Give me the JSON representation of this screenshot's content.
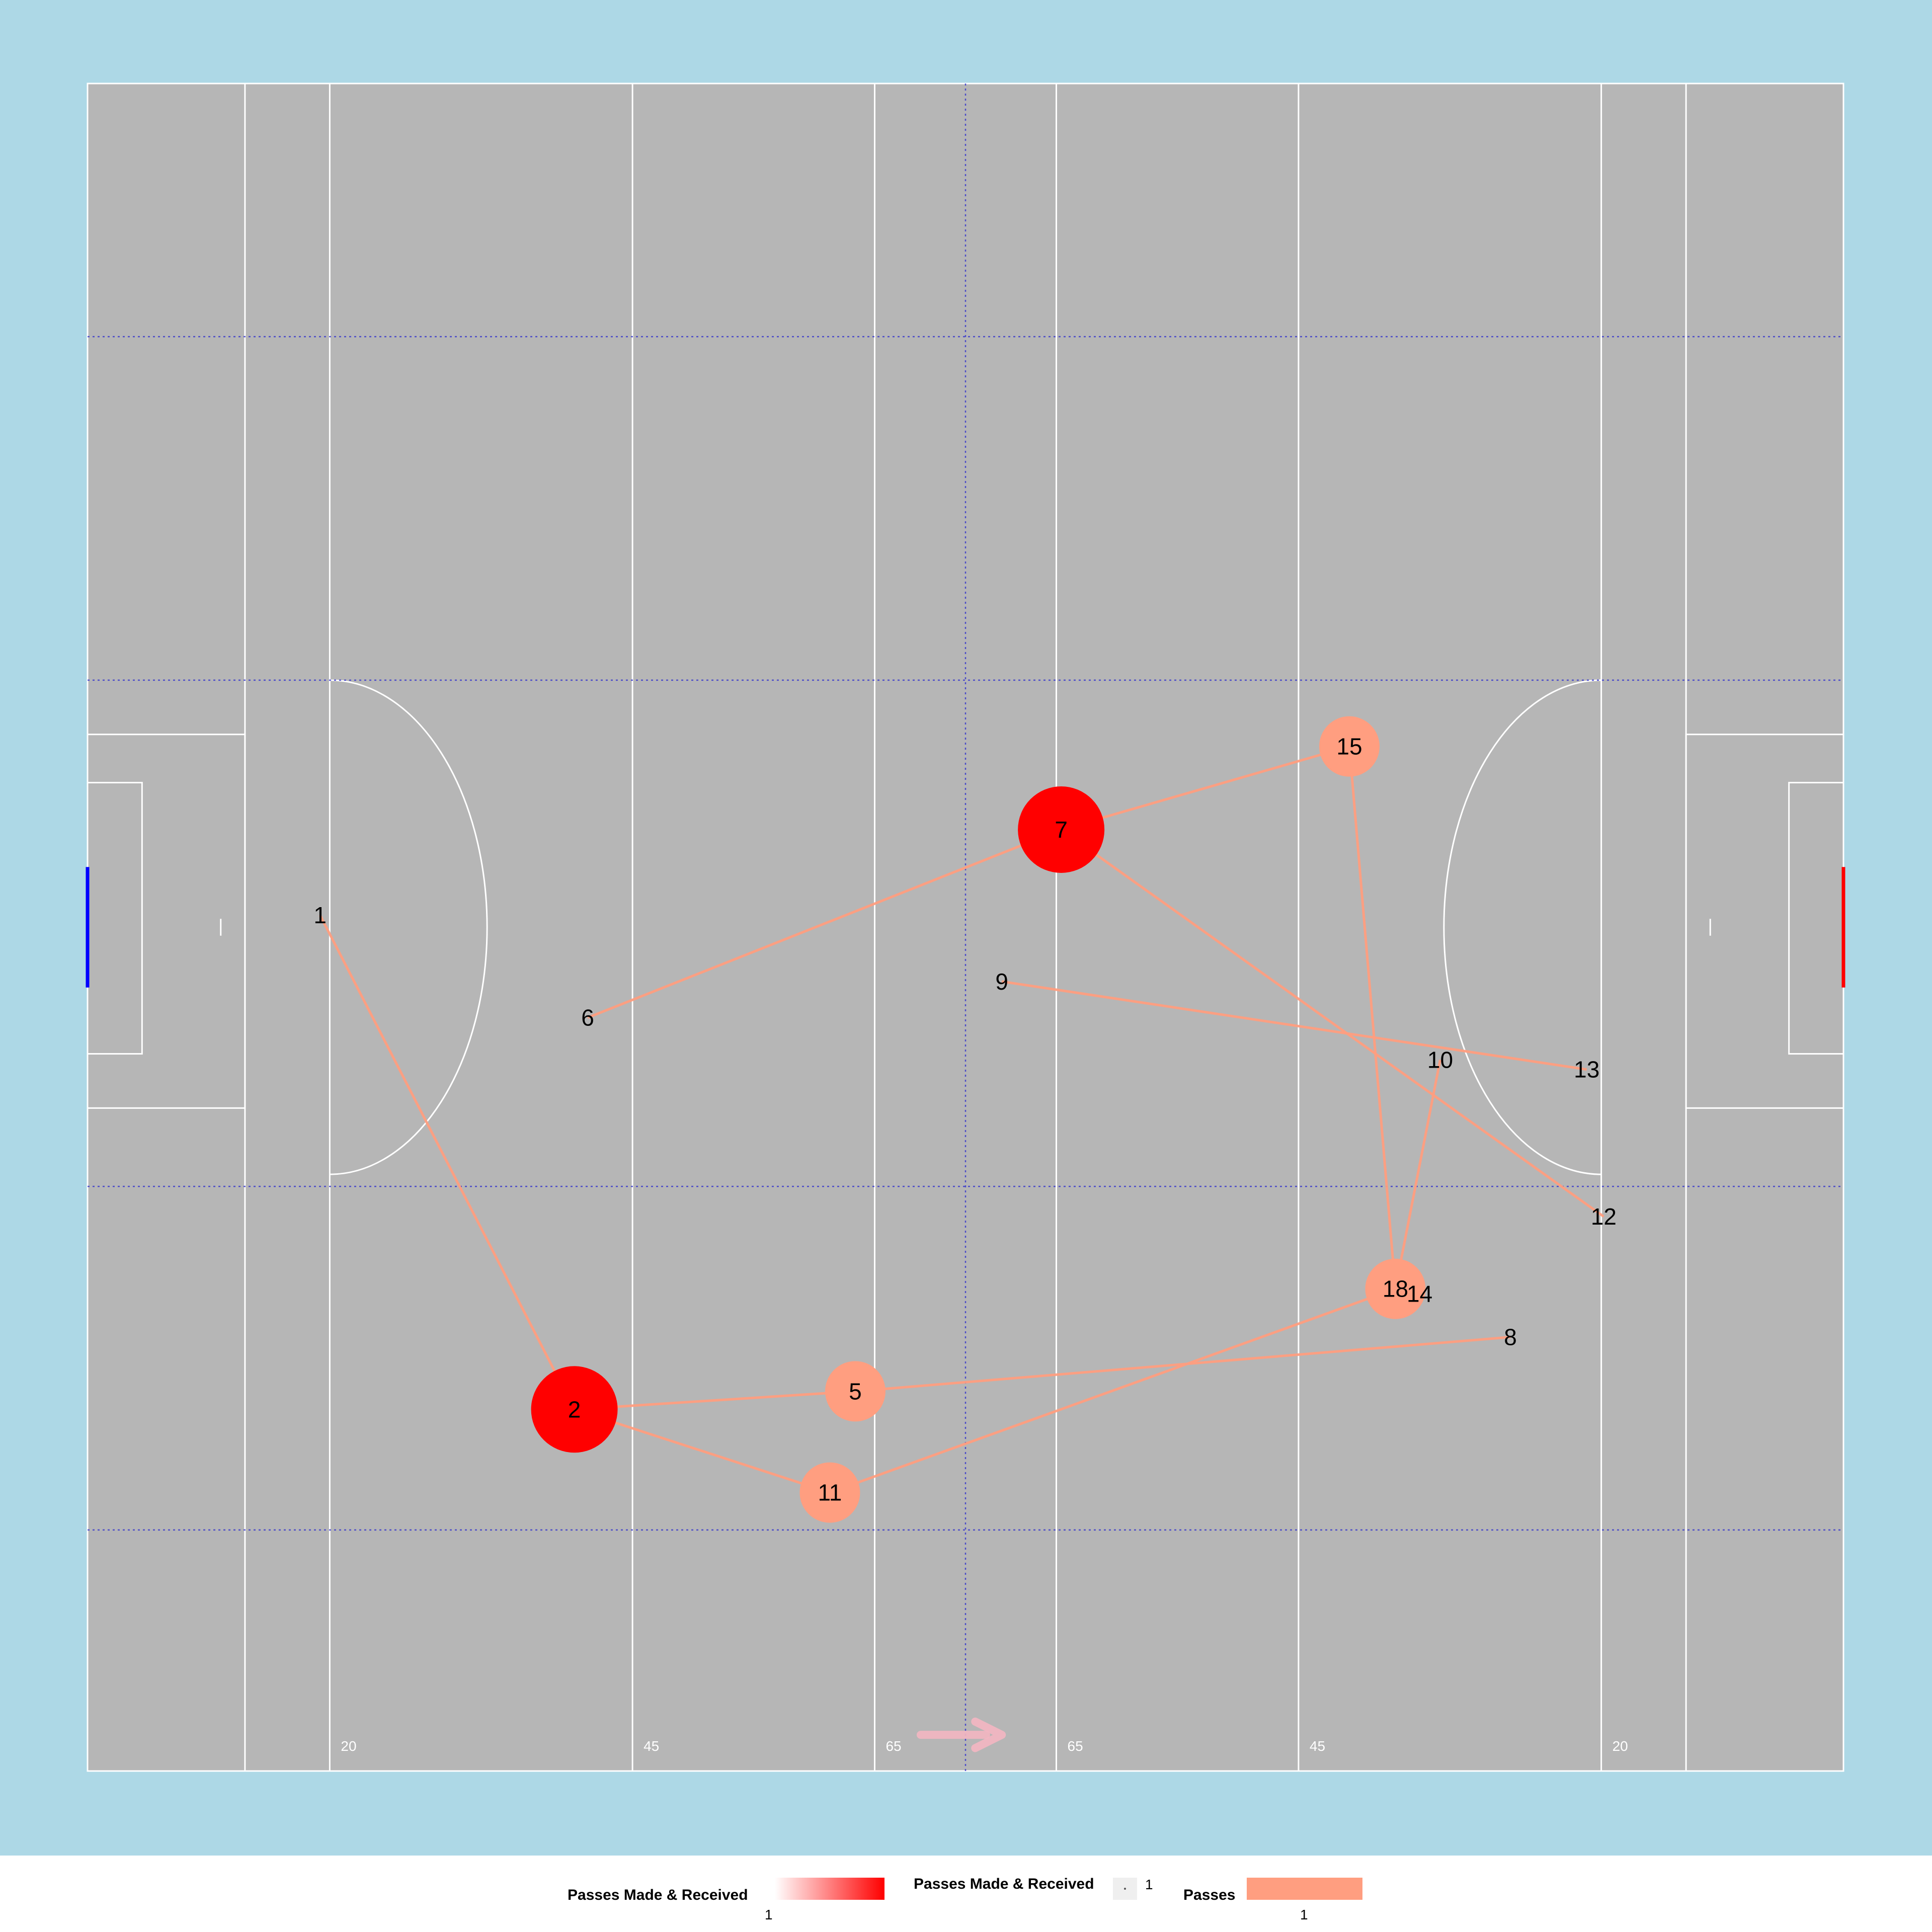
{
  "chart_data": {
    "type": "network",
    "pitch": {
      "length": 145,
      "width": 140,
      "distance_labels": [
        "20",
        "45",
        "65",
        "65",
        "45",
        "20"
      ]
    },
    "players": [
      {
        "id": "1",
        "x": 19.2,
        "y": 71.0,
        "size": 0,
        "intensity": 0
      },
      {
        "id": "2",
        "x": 40.2,
        "y": 30.0,
        "size": 2,
        "intensity": 1
      },
      {
        "id": "5",
        "x": 63.4,
        "y": 31.5,
        "size": 1,
        "intensity": 0.5
      },
      {
        "id": "6",
        "x": 41.3,
        "y": 62.5,
        "size": 0,
        "intensity": 0
      },
      {
        "id": "7",
        "x": 80.4,
        "y": 78.1,
        "size": 2,
        "intensity": 1
      },
      {
        "id": "8",
        "x": 117.5,
        "y": 36.0,
        "size": 0,
        "intensity": 0
      },
      {
        "id": "9",
        "x": 75.5,
        "y": 65.5,
        "size": 0,
        "intensity": 0
      },
      {
        "id": "10",
        "x": 111.7,
        "y": 59.0,
        "size": 0,
        "intensity": 0
      },
      {
        "id": "11",
        "x": 61.3,
        "y": 23.1,
        "size": 1,
        "intensity": 0.5
      },
      {
        "id": "12",
        "x": 125.2,
        "y": 46.0,
        "size": 0,
        "intensity": 0
      },
      {
        "id": "13",
        "x": 123.8,
        "y": 58.2,
        "size": 0,
        "intensity": 0
      },
      {
        "id": "14",
        "x": 110.0,
        "y": 39.6,
        "size": 0,
        "intensity": 0
      },
      {
        "id": "15",
        "x": 104.2,
        "y": 85.0,
        "size": 1,
        "intensity": 0.5
      },
      {
        "id": "18",
        "x": 108.0,
        "y": 40.0,
        "size": 1,
        "intensity": 0.5
      }
    ],
    "passes": [
      {
        "from": "1",
        "to": "2",
        "count": 1
      },
      {
        "from": "2",
        "to": "5",
        "count": 1
      },
      {
        "from": "2",
        "to": "11",
        "count": 1
      },
      {
        "from": "11",
        "to": "18",
        "count": 1
      },
      {
        "from": "5",
        "to": "8",
        "count": 1
      },
      {
        "from": "6",
        "to": "7",
        "count": 1
      },
      {
        "from": "7",
        "to": "15",
        "count": 1
      },
      {
        "from": "7",
        "to": "12",
        "count": 1
      },
      {
        "from": "15",
        "to": "18",
        "count": 1
      },
      {
        "from": "18",
        "to": "10",
        "count": 1
      },
      {
        "from": "9",
        "to": "13",
        "count": 1
      }
    ],
    "legend": [
      {
        "title": "Passes Made & Received",
        "label": "1"
      },
      {
        "title": "Passes Made & Received",
        "label": "1"
      },
      {
        "title": "Passes",
        "label": "1"
      }
    ],
    "colors": {
      "background": "#add8e6",
      "pitch": "#b6b6b6",
      "lines": "#ffffff",
      "grid": "#3333cc",
      "pass_line": "#ff9e80",
      "node_high": "#ff0000",
      "node_mid": "#ff9e80",
      "left_goal": "#0000ff",
      "right_goal": "#ff0000",
      "arrow": "#f4b6c2"
    },
    "attack_direction": "right",
    "grid": true
  }
}
